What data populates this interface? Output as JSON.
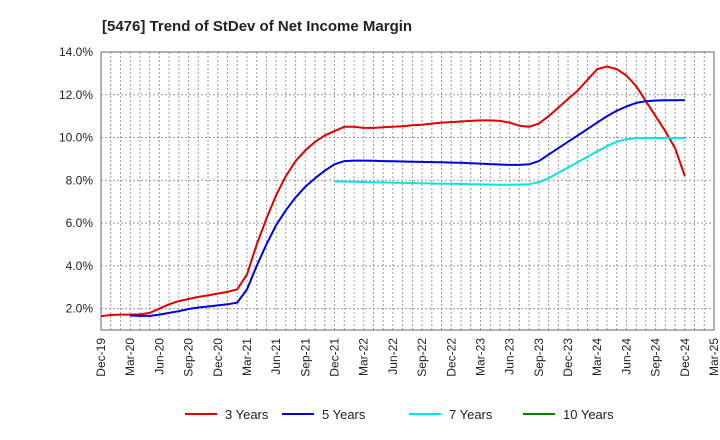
{
  "chart_data": {
    "type": "line",
    "title": "[5476]  Trend of StDev of Net Income Margin",
    "xlabel": "",
    "ylabel": "",
    "ylim": [
      1.0,
      14.0
    ],
    "y_ticks": [
      "2.0%",
      "4.0%",
      "6.0%",
      "8.0%",
      "10.0%",
      "12.0%",
      "14.0%"
    ],
    "x_ticks": [
      "Dec-19",
      "Mar-20",
      "Jun-20",
      "Sep-20",
      "Dec-20",
      "Mar-21",
      "Jun-21",
      "Sep-21",
      "Dec-21",
      "Mar-22",
      "Jun-22",
      "Sep-22",
      "Dec-22",
      "Mar-23",
      "Jun-23",
      "Sep-23",
      "Dec-23",
      "Mar-24",
      "Jun-24",
      "Sep-24",
      "Dec-24",
      "Mar-25"
    ],
    "grid": true,
    "legend_position": "bottom",
    "series": [
      {
        "name": "3 Years",
        "color": "#e00000",
        "x": [
          "Dec-19",
          "Jan-20",
          "Feb-20",
          "Mar-20",
          "Apr-20",
          "May-20",
          "Jun-20",
          "Jul-20",
          "Aug-20",
          "Sep-20",
          "Oct-20",
          "Nov-20",
          "Dec-20",
          "Jan-21",
          "Feb-21",
          "Mar-21",
          "Apr-21",
          "May-21",
          "Jun-21",
          "Jul-21",
          "Aug-21",
          "Sep-21",
          "Oct-21",
          "Nov-21",
          "Dec-21",
          "Jan-22",
          "Feb-22",
          "Mar-22",
          "Apr-22",
          "May-22",
          "Jun-22",
          "Jul-22",
          "Aug-22",
          "Sep-22",
          "Oct-22",
          "Nov-22",
          "Dec-22",
          "Jan-23",
          "Feb-23",
          "Mar-23",
          "Apr-23",
          "May-23",
          "Jun-23",
          "Jul-23",
          "Aug-23",
          "Sep-23",
          "Oct-23",
          "Nov-23",
          "Dec-23",
          "Jan-24",
          "Feb-24",
          "Mar-24",
          "Apr-24",
          "May-24",
          "Jun-24",
          "Jul-24",
          "Aug-24",
          "Sep-24",
          "Oct-24",
          "Nov-24",
          "Dec-24"
        ],
        "values": [
          1.65,
          1.7,
          1.72,
          1.72,
          1.73,
          1.8,
          2.0,
          2.2,
          2.35,
          2.45,
          2.55,
          2.62,
          2.7,
          2.78,
          2.9,
          3.6,
          5.0,
          6.2,
          7.3,
          8.2,
          8.9,
          9.4,
          9.8,
          10.1,
          10.3,
          10.5,
          10.5,
          10.45,
          10.45,
          10.48,
          10.5,
          10.53,
          10.57,
          10.6,
          10.65,
          10.7,
          10.72,
          10.75,
          10.78,
          10.8,
          10.8,
          10.78,
          10.7,
          10.55,
          10.5,
          10.65,
          11.0,
          11.4,
          11.8,
          12.2,
          12.7,
          13.2,
          13.32,
          13.2,
          12.9,
          12.4,
          11.7,
          11.0,
          10.3,
          9.5,
          8.2
        ]
      },
      {
        "name": "5 Years",
        "color": "#0000dd",
        "x": [
          "Mar-20",
          "Apr-20",
          "May-20",
          "Jun-20",
          "Jul-20",
          "Aug-20",
          "Sep-20",
          "Oct-20",
          "Nov-20",
          "Dec-20",
          "Jan-21",
          "Feb-21",
          "Mar-21",
          "Apr-21",
          "May-21",
          "Jun-21",
          "Jul-21",
          "Aug-21",
          "Sep-21",
          "Oct-21",
          "Nov-21",
          "Dec-21",
          "Jan-22",
          "Feb-22",
          "Mar-22",
          "Apr-22",
          "May-22",
          "Jun-22",
          "Jul-22",
          "Aug-22",
          "Sep-22",
          "Oct-22",
          "Nov-22",
          "Dec-22",
          "Jan-23",
          "Feb-23",
          "Mar-23",
          "Apr-23",
          "May-23",
          "Jun-23",
          "Jul-23",
          "Aug-23",
          "Sep-23",
          "Oct-23",
          "Nov-23",
          "Dec-23",
          "Jan-24",
          "Feb-24",
          "Mar-24",
          "Apr-24",
          "May-24",
          "Jun-24",
          "Jul-24",
          "Aug-24",
          "Sep-24",
          "Oct-24",
          "Nov-24",
          "Dec-24"
        ],
        "values": [
          1.68,
          1.66,
          1.66,
          1.72,
          1.8,
          1.88,
          1.98,
          2.05,
          2.1,
          2.15,
          2.2,
          2.28,
          2.9,
          4.0,
          5.0,
          5.9,
          6.6,
          7.2,
          7.7,
          8.1,
          8.45,
          8.75,
          8.9,
          8.92,
          8.92,
          8.91,
          8.9,
          8.89,
          8.88,
          8.87,
          8.86,
          8.85,
          8.84,
          8.83,
          8.82,
          8.8,
          8.78,
          8.76,
          8.74,
          8.72,
          8.72,
          8.75,
          8.9,
          9.2,
          9.5,
          9.8,
          10.1,
          10.4,
          10.7,
          11.0,
          11.25,
          11.45,
          11.62,
          11.7,
          11.73,
          11.74,
          11.74,
          11.75
        ]
      },
      {
        "name": "7 Years",
        "color": "#00e5e5",
        "x": [
          "Dec-21",
          "Jan-22",
          "Feb-22",
          "Mar-22",
          "Apr-22",
          "May-22",
          "Jun-22",
          "Jul-22",
          "Aug-22",
          "Sep-22",
          "Oct-22",
          "Nov-22",
          "Dec-22",
          "Jan-23",
          "Feb-23",
          "Mar-23",
          "Apr-23",
          "May-23",
          "Jun-23",
          "Jul-23",
          "Aug-23",
          "Sep-23",
          "Oct-23",
          "Nov-23",
          "Dec-23",
          "Jan-24",
          "Feb-24",
          "Mar-24",
          "Apr-24",
          "May-24",
          "Jun-24",
          "Jul-24",
          "Aug-24",
          "Sep-24",
          "Oct-24",
          "Nov-24",
          "Dec-24"
        ],
        "values": [
          7.95,
          7.94,
          7.93,
          7.92,
          7.91,
          7.9,
          7.89,
          7.88,
          7.87,
          7.86,
          7.85,
          7.84,
          7.84,
          7.83,
          7.82,
          7.81,
          7.8,
          7.79,
          7.79,
          7.8,
          7.82,
          7.9,
          8.1,
          8.35,
          8.6,
          8.85,
          9.1,
          9.35,
          9.6,
          9.8,
          9.92,
          9.97,
          9.98,
          9.98,
          9.98,
          9.98,
          9.98
        ]
      },
      {
        "name": "10 Years",
        "color": "#008000",
        "x": [],
        "values": []
      }
    ]
  }
}
